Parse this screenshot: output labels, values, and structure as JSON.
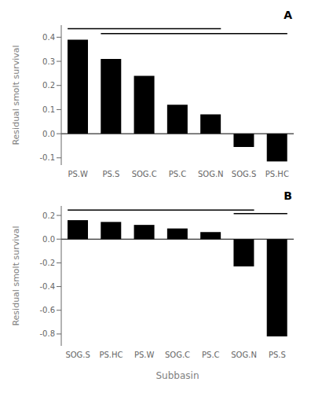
{
  "chart_data": [
    {
      "type": "bar",
      "annotation": "A",
      "categories": [
        "PS.W",
        "PS.S",
        "SOG.C",
        "PS.C",
        "SOG.N",
        "SOG.S",
        "PS.HC"
      ],
      "values": [
        0.39,
        0.31,
        0.24,
        0.12,
        0.08,
        -0.055,
        -0.115
      ],
      "color": "#000000",
      "ylim": [
        -0.13,
        0.45
      ],
      "yticks": [
        -0.1,
        {
          "value": 0,
          "label": "0.0"
        },
        0.1,
        0.2,
        0.3,
        0.4
      ],
      "ylabel": "Residual smolt survival",
      "lines": [
        {
          "y": 0.435,
          "from": "PS.W",
          "to": "SOG.N"
        },
        {
          "y": 0.415,
          "from": "PS.S",
          "to": "PS.HC"
        }
      ]
    },
    {
      "type": "bar",
      "annotation": "B",
      "categories": [
        "SOG.S",
        "PS.HC",
        "PS.W",
        "SOG.C",
        "PS.C",
        "SOG.N",
        "PS.S"
      ],
      "values": [
        0.16,
        0.145,
        0.12,
        0.09,
        0.06,
        -0.23,
        -0.82
      ],
      "color": "#000000",
      "ylim": [
        -0.9,
        0.28
      ],
      "yticks": [
        -0.8,
        -0.6,
        -0.4,
        -0.2,
        {
          "value": 0,
          "label": "0.0"
        },
        0.2
      ],
      "ylabel": "Residual smolt survival",
      "xlabel": "Subbasin",
      "lines": [
        {
          "y": 0.245,
          "from": "SOG.S",
          "to": "SOG.N"
        },
        {
          "y": 0.215,
          "from": "SOG.N",
          "to": "PS.S"
        }
      ]
    }
  ]
}
